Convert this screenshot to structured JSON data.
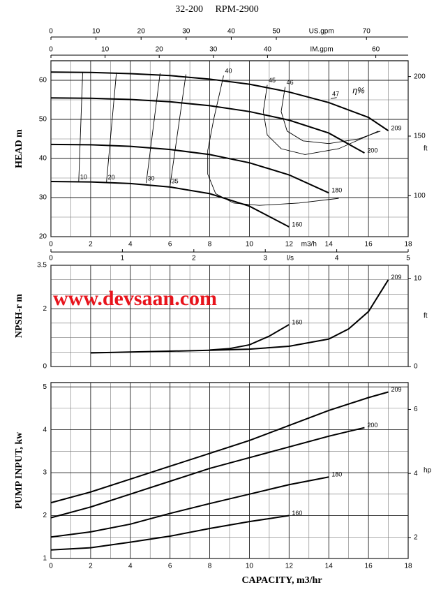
{
  "title": "32-200     RPM-2900",
  "watermark": "www.devsaan.com",
  "x_label": "CAPACITY, m3/hr",
  "chart_data": [
    {
      "type": "line",
      "y_label": "HEAD m",
      "x_unit": "m3/h",
      "show_xtick_labels": true,
      "xlim": [
        0,
        18
      ],
      "xticks": [
        0,
        2,
        4,
        6,
        8,
        10,
        12,
        14,
        16,
        18
      ],
      "xminor": [
        1,
        3,
        5,
        7,
        9,
        11,
        13,
        15,
        17
      ],
      "ylim": [
        20,
        65
      ],
      "yticks": [
        20,
        30,
        40,
        50,
        60
      ],
      "yminor": [
        25,
        35,
        45,
        55
      ],
      "y2_label": "ft",
      "y2lim": [
        65.62,
        213.25
      ],
      "y2ticks": [
        100,
        150,
        200
      ],
      "top_axes": [
        {
          "label": "US.gpm",
          "lim": [
            0,
            79.25
          ],
          "ticks": [
            0,
            10,
            20,
            30,
            40,
            50,
            70
          ]
        },
        {
          "label": "IM.gpm",
          "lim": [
            0,
            65.98
          ],
          "ticks": [
            0,
            10,
            20,
            30,
            40,
            60
          ]
        }
      ],
      "bottom_axis": {
        "label": "l/s",
        "lim": [
          0,
          5
        ],
        "ticks": [
          0,
          1,
          2,
          3,
          4,
          5
        ]
      },
      "series": [
        {
          "name": "209",
          "color": "#000000",
          "x": [
            0,
            2,
            4,
            6,
            8,
            10,
            12,
            14,
            16,
            17
          ],
          "values": [
            62.1,
            62.0,
            61.7,
            61.2,
            60.3,
            59.0,
            57.0,
            54.3,
            50.5,
            47.1
          ]
        },
        {
          "name": "200",
          "color": "#000000",
          "x": [
            0,
            2,
            4,
            6,
            8,
            10,
            12,
            14,
            15.8
          ],
          "values": [
            55.5,
            55.4,
            55.1,
            54.5,
            53.5,
            52.0,
            49.8,
            46.5,
            41.4
          ]
        },
        {
          "name": "180",
          "color": "#000000",
          "x": [
            0,
            2,
            4,
            6,
            8,
            10,
            12,
            14
          ],
          "values": [
            43.6,
            43.5,
            43.1,
            42.3,
            41.0,
            38.9,
            35.8,
            31.2
          ]
        },
        {
          "name": "160",
          "color": "#000000",
          "x": [
            0,
            2,
            4,
            6,
            8,
            10,
            12
          ],
          "values": [
            34.1,
            34.0,
            33.6,
            32.7,
            31.0,
            27.8,
            22.5
          ]
        }
      ],
      "efficiency_label": "η%",
      "efficiency": [
        {
          "name": "10",
          "x": [
            1.4,
            1.6
          ],
          "values": [
            34.1,
            62.1
          ]
        },
        {
          "name": "20",
          "x": [
            2.8,
            3.3
          ],
          "values": [
            34.0,
            62.0
          ]
        },
        {
          "name": "30",
          "x": [
            4.8,
            5.5
          ],
          "values": [
            33.7,
            61.8
          ]
        },
        {
          "name": "35",
          "x": [
            6.0,
            6.8
          ],
          "values": [
            33.0,
            61.5
          ]
        },
        {
          "name": "40",
          "x": [
            8.7,
            8.2,
            7.9,
            7.9,
            8.3,
            9.2,
            10.5,
            12.5,
            14.5
          ],
          "values": [
            61.2,
            50,
            42,
            36,
            31,
            28.6,
            28.0,
            28.6,
            29.8
          ]
        },
        {
          "name": "45",
          "x": [
            10.9,
            10.7,
            10.9,
            11.6,
            12.8,
            14.5,
            16.5
          ],
          "values": [
            58.8,
            52,
            46,
            42.5,
            41,
            42.5,
            47
          ]
        },
        {
          "name": "46",
          "x": [
            11.8,
            11.6,
            11.9,
            12.7,
            14,
            15.5,
            16.6
          ],
          "values": [
            58.3,
            52,
            47,
            44.5,
            43.8,
            45,
            47
          ]
        },
        {
          "name": "47",
          "x": [
            14.1,
            14.4
          ],
          "values": [
            55.3,
            55.6
          ]
        }
      ]
    },
    {
      "type": "line",
      "y_label": "NPSH-r m",
      "show_xtick_labels": false,
      "xlim": [
        0,
        18
      ],
      "xticks": [
        0,
        2,
        4,
        6,
        8,
        10,
        12,
        14,
        16,
        18
      ],
      "xminor": [
        1,
        3,
        5,
        7,
        9,
        11,
        13,
        15,
        17
      ],
      "ylim": [
        0,
        3.5
      ],
      "yticks": [
        0,
        2,
        3.5
      ],
      "yminor": [
        0.5,
        1,
        1.5,
        2.5,
        3
      ],
      "y2_label": "ft",
      "y2lim": [
        0,
        11.48
      ],
      "y2ticks": [
        0,
        10
      ],
      "series": [
        {
          "name": "209",
          "color": "#000000",
          "x": [
            2,
            4,
            6,
            8,
            10,
            12,
            14,
            15,
            16,
            17
          ],
          "values": [
            0.47,
            0.5,
            0.53,
            0.56,
            0.6,
            0.7,
            0.95,
            1.3,
            1.9,
            3.0
          ]
        },
        {
          "name": "160",
          "color": "#000000",
          "x": [
            8,
            9,
            10,
            11,
            12
          ],
          "values": [
            0.57,
            0.62,
            0.75,
            1.05,
            1.45
          ]
        }
      ]
    },
    {
      "type": "line",
      "y_label": "PUMP INPUT, kw",
      "show_xtick_labels": true,
      "xlim": [
        0,
        18
      ],
      "xticks": [
        0,
        2,
        4,
        6,
        8,
        10,
        12,
        14,
        16,
        18
      ],
      "xminor": [
        1,
        3,
        5,
        7,
        9,
        11,
        13,
        15,
        17
      ],
      "ylim": [
        1,
        5.1
      ],
      "yticks": [
        1,
        2,
        3,
        4,
        5
      ],
      "yminor": [
        1.5,
        2.5,
        3.5,
        4.5
      ],
      "y2_label": "hp",
      "y2lim": [
        1.341,
        6.839
      ],
      "y2ticks": [
        2,
        4,
        6
      ],
      "series": [
        {
          "name": "209",
          "color": "#000000",
          "x": [
            0,
            2,
            4,
            6,
            8,
            10,
            12,
            14,
            16,
            17
          ],
          "values": [
            2.3,
            2.55,
            2.85,
            3.15,
            3.45,
            3.75,
            4.1,
            4.45,
            4.75,
            4.88
          ]
        },
        {
          "name": "200",
          "color": "#000000",
          "x": [
            0,
            2,
            4,
            6,
            8,
            10,
            12,
            14,
            15.8
          ],
          "values": [
            1.95,
            2.2,
            2.5,
            2.8,
            3.1,
            3.35,
            3.6,
            3.85,
            4.05
          ]
        },
        {
          "name": "180",
          "color": "#000000",
          "x": [
            0,
            2,
            4,
            6,
            8,
            10,
            12,
            14
          ],
          "values": [
            1.5,
            1.62,
            1.8,
            2.05,
            2.28,
            2.5,
            2.72,
            2.9
          ]
        },
        {
          "name": "160",
          "color": "#000000",
          "x": [
            0,
            2,
            4,
            6,
            8,
            10,
            12
          ],
          "values": [
            1.2,
            1.25,
            1.38,
            1.52,
            1.7,
            1.86,
            2.0
          ]
        }
      ]
    }
  ]
}
